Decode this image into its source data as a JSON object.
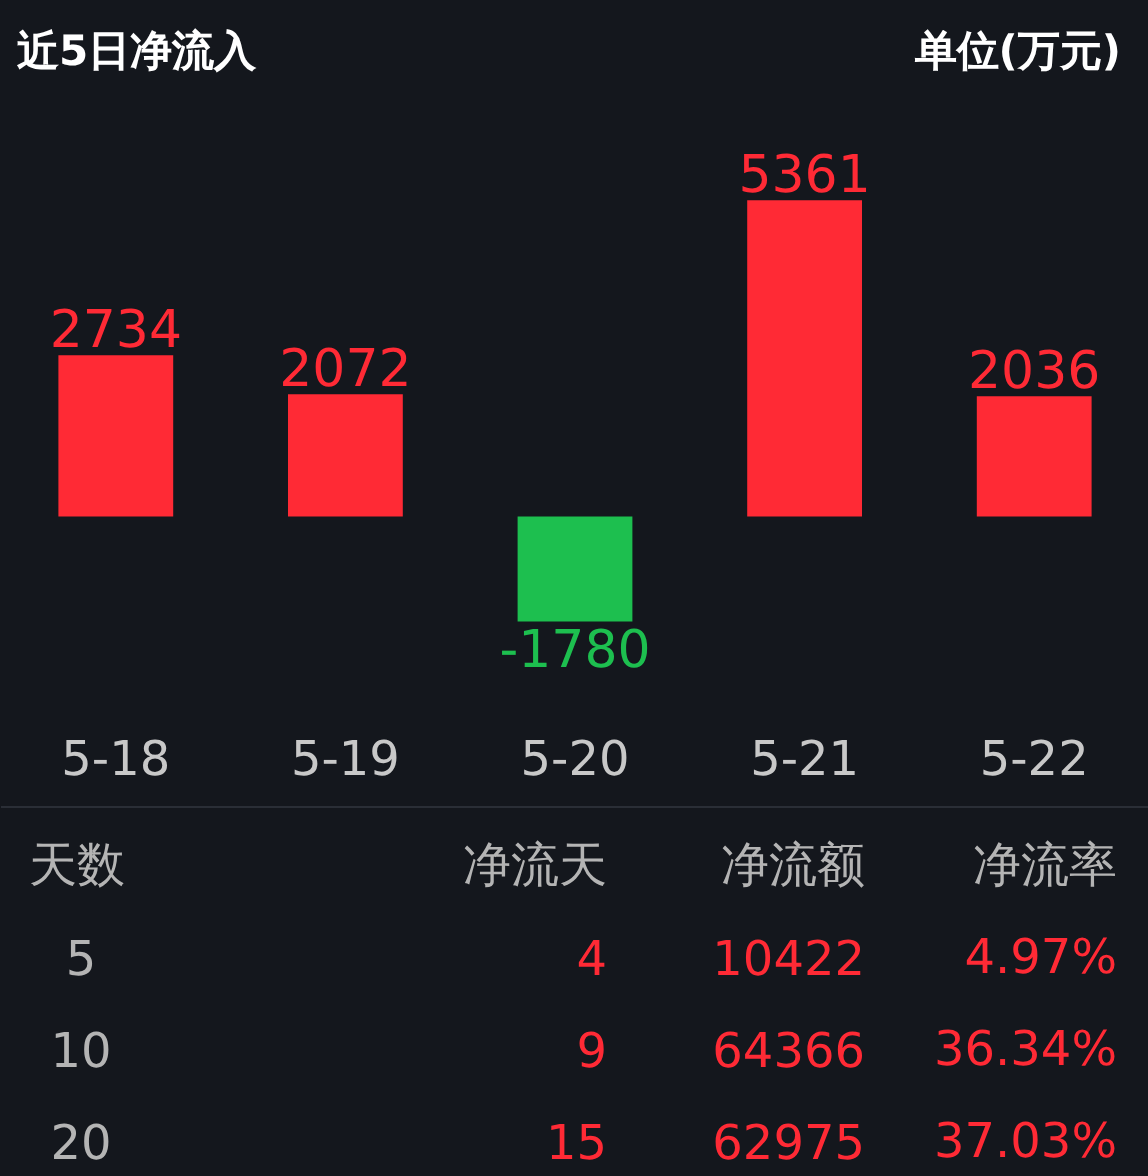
{
  "chart_data": [
    {
      "type": "bar",
      "title": "近5日净流入",
      "subtitle": "单位(万元)",
      "categories": [
        "5-18",
        "5-19",
        "5-20",
        "5-21",
        "5-22"
      ],
      "values": [
        2734,
        2072,
        -1780,
        5361,
        2036
      ],
      "colors": [
        "#ff2a35",
        "#ff2a35",
        "#1dbf4f",
        "#ff2a35",
        "#ff2a35"
      ],
      "data_labels": true
    },
    {
      "type": "other",
      "annotations": [
        "天数",
        "净流天",
        "净流额",
        "净流率",
        "5",
        "4",
        "10422",
        "4.97%",
        "10",
        "9",
        "64366",
        "36.34%",
        "20",
        "15",
        "62975",
        "37.03%"
      ]
    }
  ]
}
